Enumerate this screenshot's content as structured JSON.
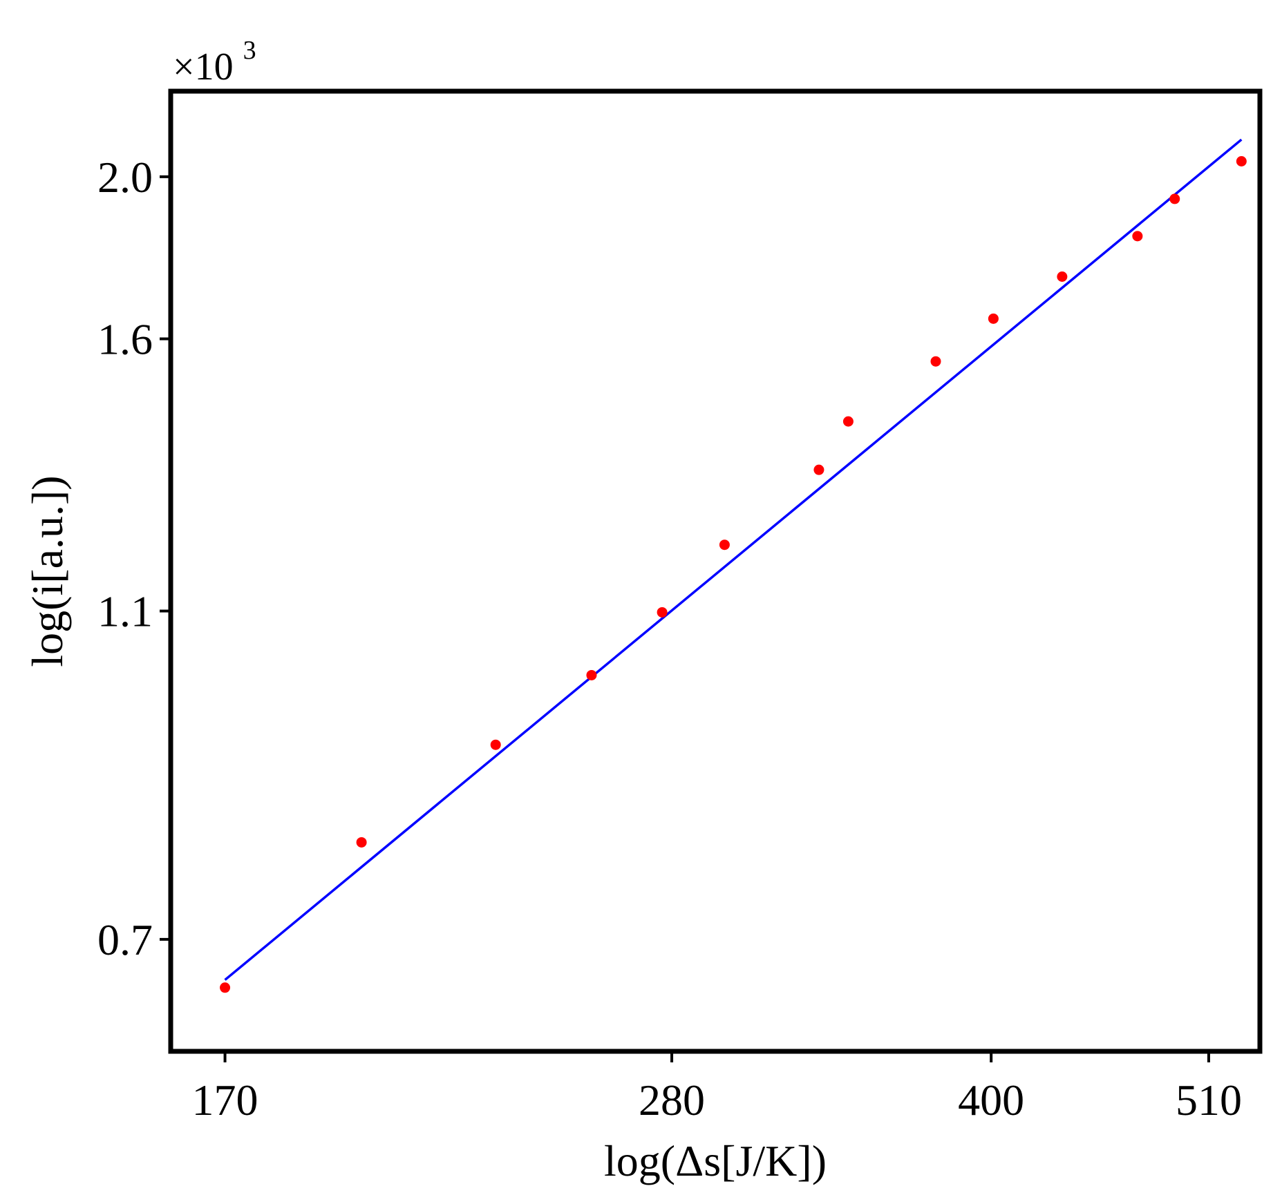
{
  "chart_data": {
    "type": "scatter",
    "title": "",
    "xlabel": "log(Δs[J/K])",
    "ylabel": "log(i[a.u.])",
    "x_scale": "log",
    "y_scale": "log",
    "x_ticks": [
      170,
      280,
      400,
      510
    ],
    "x_tick_labels": [
      "170",
      "280",
      "400",
      "510"
    ],
    "y_ticks": [
      700,
      1100,
      1600,
      2000
    ],
    "y_tick_labels": [
      "0.7",
      "1.1",
      "1.6",
      "2.0"
    ],
    "y_multiplier": {
      "base": "×10",
      "exponent": "3"
    },
    "xlim": [
      160,
      540
    ],
    "ylim": [
      600,
      2250
    ],
    "grid": false,
    "series": [
      {
        "kind": "points",
        "color": "#ff0000",
        "x": [
          170,
          198,
          230,
          256,
          277,
          297,
          330,
          341,
          376,
          401,
          433,
          471,
          491,
          529
        ],
        "y": [
          655,
          800,
          915,
          1007,
          1098,
          1205,
          1336,
          1428,
          1551,
          1645,
          1743,
          1843,
          1940,
          2043
        ]
      },
      {
        "kind": "fit-line",
        "color": "#0000ff",
        "x": [
          170,
          529
        ],
        "y": [
          662,
          2105
        ]
      }
    ]
  }
}
